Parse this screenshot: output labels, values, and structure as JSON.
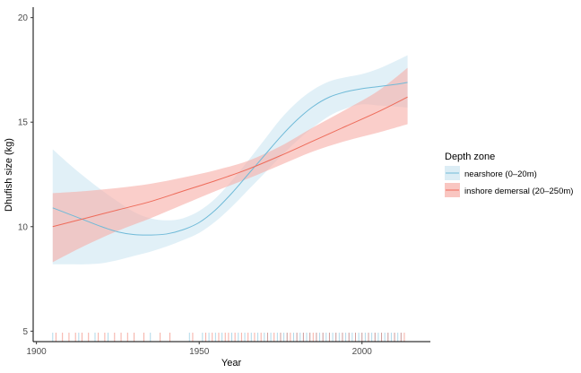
{
  "chart_data": {
    "type": "line",
    "xlabel": "Year",
    "ylabel": "Dhufish size (kg)",
    "xlim": [
      1899,
      2021
    ],
    "ylim": [
      4.5,
      20.5
    ],
    "x_ticks": [
      1900,
      1950,
      2000
    ],
    "y_ticks": [
      5,
      10,
      15,
      20
    ],
    "x_tick_labels": [
      "1900",
      "1950",
      "2000"
    ],
    "y_tick_labels": [
      "5",
      "10",
      "15",
      "20"
    ],
    "grid": false,
    "legend": {
      "title": "Depth zone",
      "position": "right"
    },
    "series": [
      {
        "name": "nearshore (0–20m)",
        "color": "#6fbad8",
        "fill": "#cde6f1",
        "x": [
          1905,
          1910,
          1915,
          1920,
          1925,
          1930,
          1935,
          1940,
          1945,
          1950,
          1955,
          1960,
          1965,
          1970,
          1975,
          1980,
          1985,
          1990,
          1995,
          2000,
          2005,
          2010,
          2014
        ],
        "y": [
          10.9,
          10.6,
          10.3,
          10.0,
          9.75,
          9.62,
          9.6,
          9.65,
          9.85,
          10.2,
          10.8,
          11.6,
          12.5,
          13.4,
          14.3,
          15.1,
          15.75,
          16.2,
          16.45,
          16.6,
          16.7,
          16.8,
          16.9
        ],
        "lower": [
          8.2,
          8.2,
          8.2,
          8.25,
          8.4,
          8.6,
          8.8,
          9.05,
          9.35,
          9.7,
          10.25,
          10.95,
          11.75,
          12.55,
          13.35,
          14.1,
          14.75,
          15.3,
          15.65,
          15.85,
          15.8,
          15.75,
          15.7
        ],
        "upper": [
          13.7,
          13.0,
          12.35,
          11.75,
          11.2,
          10.7,
          10.4,
          10.3,
          10.4,
          10.75,
          11.35,
          12.2,
          13.15,
          14.15,
          15.15,
          15.95,
          16.55,
          16.95,
          17.15,
          17.3,
          17.55,
          17.9,
          18.2
        ]
      },
      {
        "name": "inshore demersal (20–250m)",
        "color": "#ee6b5a",
        "fill": "#f7aea6",
        "x": [
          1905,
          1915,
          1925,
          1935,
          1945,
          1955,
          1965,
          1975,
          1985,
          1995,
          2005,
          2014
        ],
        "y": [
          10.0,
          10.4,
          10.8,
          11.2,
          11.7,
          12.2,
          12.75,
          13.4,
          14.1,
          14.8,
          15.5,
          16.2
        ],
        "lower": [
          8.3,
          9.1,
          9.8,
          10.4,
          11.05,
          11.7,
          12.3,
          12.95,
          13.6,
          14.1,
          14.5,
          14.9
        ],
        "upper": [
          11.6,
          11.7,
          11.85,
          12.05,
          12.35,
          12.7,
          13.15,
          13.85,
          14.75,
          15.6,
          16.5,
          17.6
        ]
      }
    ],
    "rug": {
      "nearshore (0–20m)": [
        1905,
        1913,
        1918,
        1922,
        1935,
        1947,
        1951,
        1953,
        1955,
        1957,
        1960,
        1962,
        1964,
        1966,
        1968,
        1970,
        1971,
        1972,
        1974,
        1975,
        1976,
        1977,
        1979,
        1980,
        1981,
        1982,
        1983,
        1984,
        1986,
        1987,
        1988,
        1989,
        1990,
        1991,
        1992,
        1993,
        1994,
        1995,
        1996,
        1997,
        1998,
        1999,
        2000,
        2001,
        2002,
        2003,
        2004,
        2005,
        2006,
        2007,
        2008,
        2009,
        2010,
        2011,
        2012
      ],
      "inshore demersal (20–250m)": [
        1906,
        1908,
        1910,
        1912,
        1914,
        1916,
        1919,
        1921,
        1924,
        1926,
        1928,
        1930,
        1933,
        1938,
        1941,
        1948,
        1952,
        1954,
        1956,
        1958,
        1959,
        1961,
        1963,
        1965,
        1967,
        1969,
        1971,
        1973,
        1975,
        1977,
        1978,
        1980,
        1982,
        1984,
        1985,
        1986,
        1988,
        1990,
        1992,
        1994,
        1996,
        1998,
        2000,
        2002,
        2004,
        2006,
        2008,
        2010,
        2012,
        2013
      ]
    }
  }
}
